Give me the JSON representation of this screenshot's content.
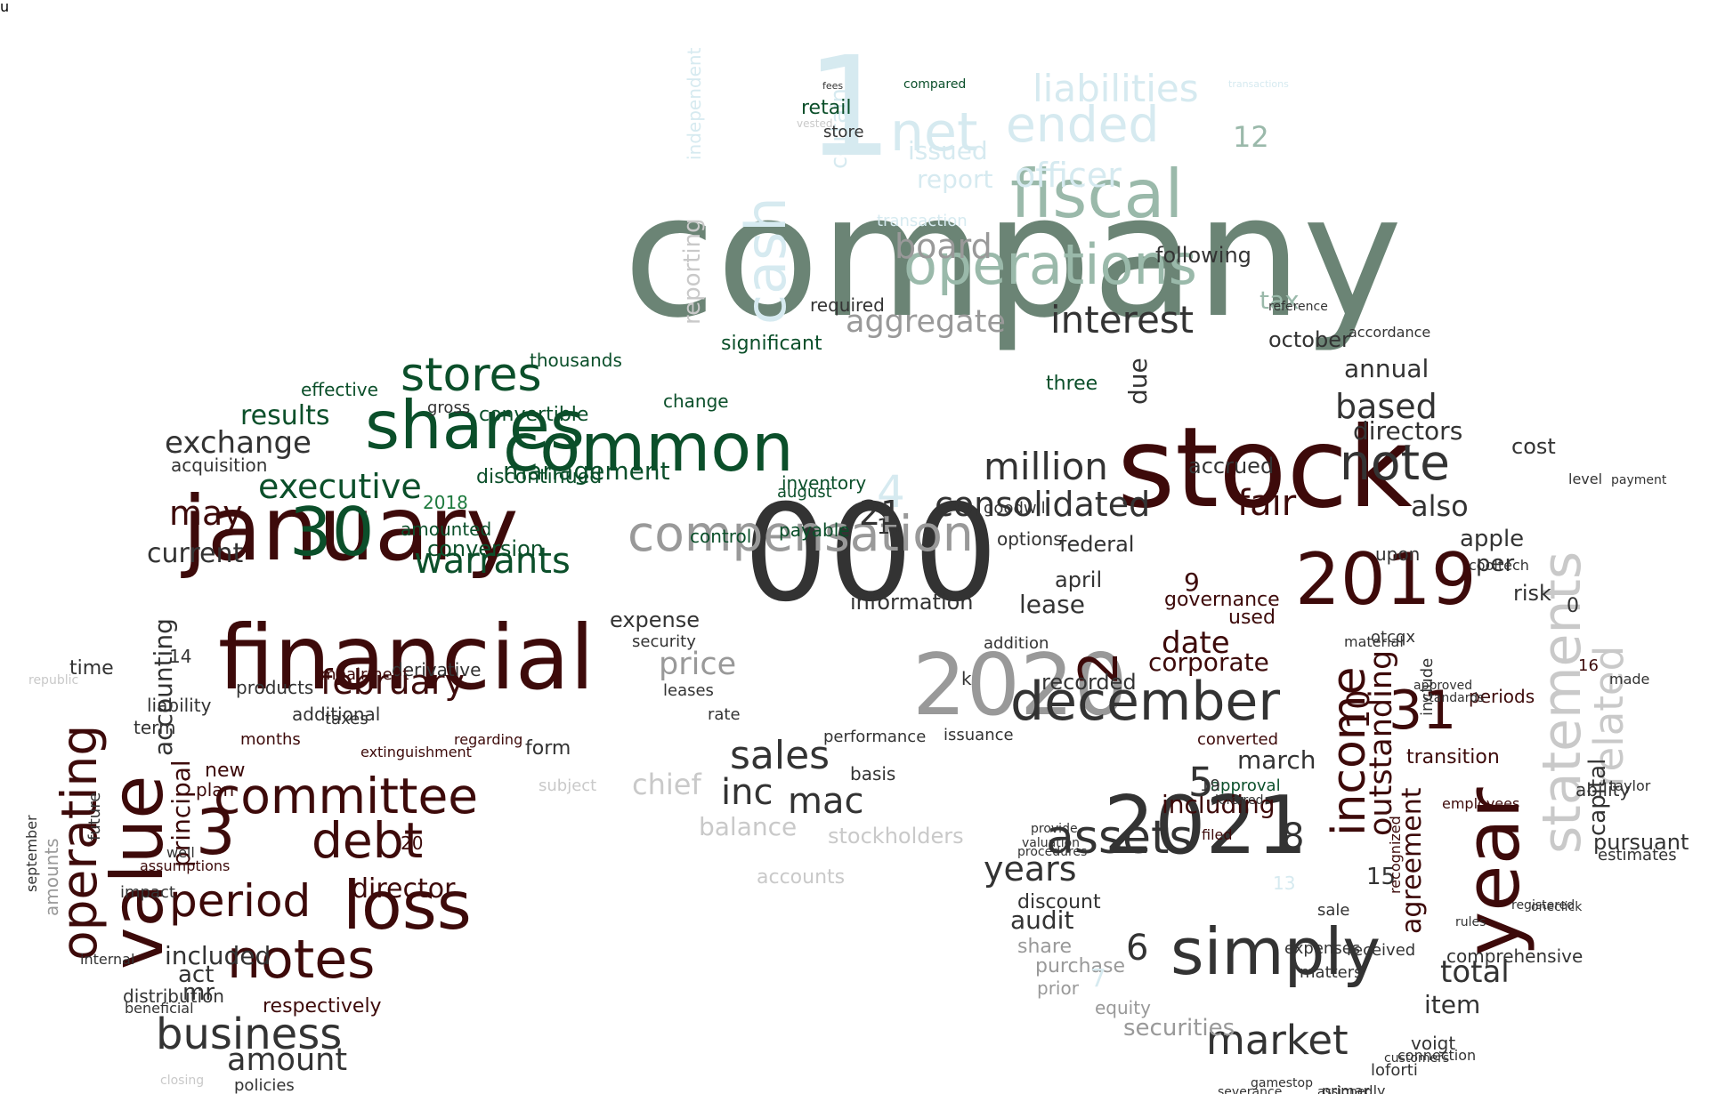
{
  "palette": {
    "dark_red": "#3d0a0a",
    "red": "#7a1e1e",
    "dark_green": "#0b4f2a",
    "green": "#1e7a3e",
    "sage": "#6b8475",
    "mint": "#9ab9aa",
    "ice": "#d6eaf0",
    "charcoal": "#333333",
    "gray": "#999999",
    "light_gray": "#c9c9c9"
  },
  "words": [
    {
      "text": "company",
      "color": "sage"
    },
    {
      "text": "000",
      "color": "charcoal"
    },
    {
      "text": "stock",
      "color": "dark_red"
    },
    {
      "text": "financial",
      "color": "dark_red"
    },
    {
      "text": "january",
      "color": "dark_red"
    },
    {
      "text": "2020",
      "color": "gray"
    },
    {
      "text": "2021",
      "color": "charcoal"
    },
    {
      "text": "2019",
      "color": "dark_red"
    },
    {
      "text": "1",
      "color": "ice"
    },
    {
      "text": "year",
      "color": "dark_red"
    },
    {
      "text": "value",
      "color": "dark_red"
    },
    {
      "text": "statements",
      "color": "light_gray"
    },
    {
      "text": "simply",
      "color": "charcoal"
    },
    {
      "text": "common",
      "color": "dark_green"
    },
    {
      "text": "compensation",
      "color": "gray"
    },
    {
      "text": "fiscal",
      "color": "mint"
    },
    {
      "text": "operations",
      "color": "mint"
    },
    {
      "text": "shares",
      "color": "dark_green"
    },
    {
      "text": "30",
      "color": "dark_green"
    },
    {
      "text": "committee",
      "color": "dark_red"
    },
    {
      "text": "loss",
      "color": "dark_red"
    },
    {
      "text": "notes",
      "color": "dark_red"
    },
    {
      "text": "december",
      "color": "charcoal"
    },
    {
      "text": "net",
      "color": "ice"
    },
    {
      "text": "ended",
      "color": "ice"
    },
    {
      "text": "liabilities",
      "color": "ice"
    },
    {
      "text": "cash",
      "color": "ice"
    },
    {
      "text": "income",
      "color": "dark_red"
    },
    {
      "text": "related",
      "color": "light_gray"
    },
    {
      "text": "debt",
      "color": "dark_red"
    },
    {
      "text": "period",
      "color": "dark_red"
    },
    {
      "text": "business",
      "color": "charcoal"
    },
    {
      "text": "note",
      "color": "charcoal"
    },
    {
      "text": "million",
      "color": "charcoal"
    },
    {
      "text": "assets",
      "color": "charcoal"
    },
    {
      "text": "stores",
      "color": "dark_green"
    },
    {
      "text": "2",
      "color": "dark_red"
    },
    {
      "text": "3",
      "color": "dark_red"
    },
    {
      "text": "31",
      "color": "dark_red"
    },
    {
      "text": "operating",
      "color": "dark_red"
    },
    {
      "text": "market",
      "color": "charcoal"
    },
    {
      "text": "executive",
      "color": "dark_green"
    },
    {
      "text": "warrants",
      "color": "dark_green"
    },
    {
      "text": "interest",
      "color": "charcoal"
    },
    {
      "text": "consolidated",
      "color": "charcoal"
    },
    {
      "text": "sales",
      "color": "charcoal"
    },
    {
      "text": "years",
      "color": "charcoal"
    },
    {
      "text": "4",
      "color": "ice"
    },
    {
      "text": "mac",
      "color": "charcoal"
    },
    {
      "text": "inc",
      "color": "charcoal"
    },
    {
      "text": "amount",
      "color": "charcoal"
    },
    {
      "text": "february",
      "color": "dark_red"
    },
    {
      "text": "director",
      "color": "dark_red"
    },
    {
      "text": "price",
      "color": "gray"
    },
    {
      "text": "fair",
      "color": "dark_red"
    },
    {
      "text": "agreement",
      "color": "dark_red"
    },
    {
      "text": "outstanding",
      "color": "dark_red"
    },
    {
      "text": "board",
      "color": "gray"
    },
    {
      "text": "aggregate",
      "color": "gray"
    },
    {
      "text": "officer",
      "color": "ice"
    },
    {
      "text": "based",
      "color": "charcoal"
    },
    {
      "text": "date",
      "color": "dark_red"
    },
    {
      "text": "corporate",
      "color": "dark_red"
    },
    {
      "text": "including",
      "color": "dark_red"
    },
    {
      "text": "may",
      "color": "dark_red"
    },
    {
      "text": "exchange",
      "color": "charcoal"
    },
    {
      "text": "results",
      "color": "dark_green"
    },
    {
      "text": "current",
      "color": "charcoal"
    },
    {
      "text": "accounting",
      "color": "charcoal"
    },
    {
      "text": "principal",
      "color": "dark_red"
    },
    {
      "text": "audit",
      "color": "charcoal"
    },
    {
      "text": "total",
      "color": "charcoal"
    },
    {
      "text": "management",
      "color": "dark_green"
    },
    {
      "text": "chief",
      "color": "light_gray"
    },
    {
      "text": "also",
      "color": "charcoal"
    },
    {
      "text": "directors",
      "color": "charcoal"
    },
    {
      "text": "tax",
      "color": "mint"
    },
    {
      "text": "report",
      "color": "ice"
    },
    {
      "text": "issued",
      "color": "ice"
    },
    {
      "text": "following",
      "color": "charcoal"
    },
    {
      "text": "certain",
      "color": "ice"
    },
    {
      "text": "reporting",
      "color": "light_gray"
    },
    {
      "text": "independent",
      "color": "ice"
    },
    {
      "text": "significant",
      "color": "dark_green"
    },
    {
      "text": "retail",
      "color": "dark_green"
    },
    {
      "text": "store",
      "color": "charcoal"
    },
    {
      "text": "12",
      "color": "mint"
    },
    {
      "text": "5",
      "color": "charcoal"
    },
    {
      "text": "6",
      "color": "charcoal"
    },
    {
      "text": "8",
      "color": "charcoal"
    },
    {
      "text": "9",
      "color": "dark_red"
    },
    {
      "text": "10",
      "color": "dark_red"
    },
    {
      "text": "14",
      "color": "charcoal"
    },
    {
      "text": "15",
      "color": "charcoal"
    },
    {
      "text": "march",
      "color": "charcoal"
    },
    {
      "text": "april",
      "color": "charcoal"
    },
    {
      "text": "october",
      "color": "charcoal"
    },
    {
      "text": "lease",
      "color": "charcoal"
    },
    {
      "text": "information",
      "color": "charcoal"
    },
    {
      "text": "expense",
      "color": "charcoal"
    },
    {
      "text": "balance",
      "color": "light_gray"
    },
    {
      "text": "stockholders",
      "color": "light_gray"
    },
    {
      "text": "accounts",
      "color": "light_gray"
    },
    {
      "text": "subject",
      "color": "light_gray"
    },
    {
      "text": "form",
      "color": "charcoal"
    },
    {
      "text": "new",
      "color": "dark_red"
    },
    {
      "text": "plan",
      "color": "dark_red"
    },
    {
      "text": "included",
      "color": "charcoal"
    },
    {
      "text": "act",
      "color": "charcoal"
    },
    {
      "text": "mr",
      "color": "charcoal"
    },
    {
      "text": "time",
      "color": "charcoal"
    },
    {
      "text": "term",
      "color": "charcoal"
    },
    {
      "text": "products",
      "color": "charcoal"
    },
    {
      "text": "liability",
      "color": "charcoal"
    },
    {
      "text": "additional",
      "color": "charcoal"
    },
    {
      "text": "taxes",
      "color": "charcoal"
    },
    {
      "text": "derivative",
      "color": "charcoal"
    },
    {
      "text": "months",
      "color": "dark_red"
    },
    {
      "text": "conversion",
      "color": "dark_green"
    },
    {
      "text": "amounted",
      "color": "dark_green"
    },
    {
      "text": "convertible",
      "color": "dark_green"
    },
    {
      "text": "discontinued",
      "color": "dark_green"
    },
    {
      "text": "2018",
      "color": "green"
    },
    {
      "text": "acquisition",
      "color": "charcoal"
    },
    {
      "text": "effective",
      "color": "dark_green"
    },
    {
      "text": "thousands",
      "color": "dark_green"
    },
    {
      "text": "gross",
      "color": "charcoal"
    },
    {
      "text": "change",
      "color": "dark_green"
    },
    {
      "text": "inventory",
      "color": "dark_green"
    },
    {
      "text": "august",
      "color": "dark_green"
    },
    {
      "text": "payable",
      "color": "dark_green"
    },
    {
      "text": "control",
      "color": "dark_green"
    },
    {
      "text": "accrued",
      "color": "charcoal"
    },
    {
      "text": "annual",
      "color": "charcoal"
    },
    {
      "text": "due",
      "color": "charcoal"
    },
    {
      "text": "three",
      "color": "dark_green"
    },
    {
      "text": "required",
      "color": "charcoal"
    },
    {
      "text": "transaction",
      "color": "ice"
    },
    {
      "text": "options",
      "color": "charcoal"
    },
    {
      "text": "apple",
      "color": "charcoal"
    },
    {
      "text": "per",
      "color": "charcoal"
    },
    {
      "text": "cost",
      "color": "charcoal"
    },
    {
      "text": "risk",
      "color": "charcoal"
    },
    {
      "text": "governance",
      "color": "dark_red"
    },
    {
      "text": "used",
      "color": "dark_red"
    },
    {
      "text": "recorded",
      "color": "charcoal"
    },
    {
      "text": "periods",
      "color": "dark_red"
    },
    {
      "text": "transition",
      "color": "dark_red"
    },
    {
      "text": "ability",
      "color": "charcoal"
    },
    {
      "text": "capital",
      "color": "charcoal"
    },
    {
      "text": "pursuant",
      "color": "charcoal"
    },
    {
      "text": "estimates",
      "color": "charcoal"
    },
    {
      "text": "comprehensive",
      "color": "charcoal"
    },
    {
      "text": "item",
      "color": "charcoal"
    },
    {
      "text": "voigt",
      "color": "charcoal"
    },
    {
      "text": "loforti",
      "color": "charcoal"
    },
    {
      "text": "securities",
      "color": "gray"
    },
    {
      "text": "equity",
      "color": "gray"
    },
    {
      "text": "purchase",
      "color": "gray"
    },
    {
      "text": "share",
      "color": "gray"
    },
    {
      "text": "prior",
      "color": "gray"
    },
    {
      "text": "discount",
      "color": "charcoal"
    },
    {
      "text": "performance",
      "color": "charcoal"
    },
    {
      "text": "issuance",
      "color": "charcoal"
    },
    {
      "text": "basis",
      "color": "charcoal"
    },
    {
      "text": "goodwill",
      "color": "charcoal"
    },
    {
      "text": "addition",
      "color": "charcoal"
    },
    {
      "text": "security",
      "color": "charcoal"
    },
    {
      "text": "leases",
      "color": "charcoal"
    },
    {
      "text": "rate",
      "color": "charcoal"
    },
    {
      "text": "converted",
      "color": "dark_red"
    },
    {
      "text": "upon",
      "color": "charcoal"
    },
    {
      "text": "otcqx",
      "color": "charcoal"
    },
    {
      "text": "cooltech",
      "color": "charcoal"
    },
    {
      "text": "material",
      "color": "charcoal"
    },
    {
      "text": "expenses",
      "color": "charcoal"
    },
    {
      "text": "matters",
      "color": "charcoal"
    },
    {
      "text": "received",
      "color": "charcoal"
    },
    {
      "text": "primarily",
      "color": "charcoal"
    },
    {
      "text": "connection",
      "color": "charcoal"
    },
    {
      "text": "gamestop",
      "color": "charcoal"
    },
    {
      "text": "assigned",
      "color": "charcoal"
    },
    {
      "text": "sale",
      "color": "charcoal"
    },
    {
      "text": "filed",
      "color": "dark_red"
    },
    {
      "text": "employees",
      "color": "dark_red"
    },
    {
      "text": "recognized",
      "color": "dark_red"
    },
    {
      "text": "impairment",
      "color": "dark_red"
    },
    {
      "text": "extinguishment",
      "color": "dark_red"
    },
    {
      "text": "regarding",
      "color": "dark_red"
    },
    {
      "text": "respectively",
      "color": "dark_red"
    },
    {
      "text": "distribution",
      "color": "charcoal"
    },
    {
      "text": "amounts",
      "color": "gray"
    },
    {
      "text": "future",
      "color": "charcoal"
    },
    {
      "text": "september",
      "color": "charcoal"
    },
    {
      "text": "internal",
      "color": "charcoal"
    },
    {
      "text": "impact",
      "color": "charcoal"
    },
    {
      "text": "well",
      "color": "charcoal"
    },
    {
      "text": "assumptions",
      "color": "dark_red"
    },
    {
      "text": "policies",
      "color": "charcoal"
    },
    {
      "text": "provide",
      "color": "charcoal"
    },
    {
      "text": "valuation",
      "color": "charcoal"
    },
    {
      "text": "procedures",
      "color": "charcoal"
    },
    {
      "text": "approved",
      "color": "charcoal"
    },
    {
      "text": "standards",
      "color": "charcoal"
    },
    {
      "text": "registered",
      "color": "charcoal"
    },
    {
      "text": "level",
      "color": "charcoal"
    },
    {
      "text": "payment",
      "color": "charcoal"
    },
    {
      "text": "made",
      "color": "charcoal"
    },
    {
      "text": "rules",
      "color": "charcoal"
    },
    {
      "text": "accordance",
      "color": "charcoal"
    },
    {
      "text": "reference",
      "color": "charcoal"
    },
    {
      "text": "customers",
      "color": "charcoal"
    },
    {
      "text": "severance",
      "color": "charcoal"
    },
    {
      "text": "beneficial",
      "color": "charcoal"
    },
    {
      "text": "closing",
      "color": "light_gray"
    },
    {
      "text": "republic",
      "color": "light_gray"
    },
    {
      "text": "vested",
      "color": "light_gray"
    },
    {
      "text": "fees",
      "color": "charcoal"
    },
    {
      "text": "compared",
      "color": "dark_green"
    },
    {
      "text": "transactions",
      "color": "ice"
    },
    {
      "text": "approval",
      "color": "dark_green"
    },
    {
      "text": "deferred",
      "color": "charcoal"
    },
    {
      "text": "include",
      "color": "charcoal"
    },
    {
      "text": "taylor",
      "color": "charcoal"
    },
    {
      "text": "oneclick",
      "color": "charcoal"
    },
    {
      "text": "federal",
      "color": "charcoal"
    },
    {
      "text": "11",
      "color": "charcoal"
    },
    {
      "text": "13",
      "color": "ice"
    },
    {
      "text": "16",
      "color": "dark_red"
    },
    {
      "text": "19",
      "color": "charcoal"
    },
    {
      "text": "20",
      "color": "dark_red"
    },
    {
      "text": "21",
      "color": "charcoal"
    },
    {
      "text": "7",
      "color": "ice"
    },
    {
      "text": "0",
      "color": "charcoal"
    },
    {
      "text": "k",
      "color": "charcoal"
    },
    {
      "text": "u",
      "color": "charcoal"
    }
  ]
}
